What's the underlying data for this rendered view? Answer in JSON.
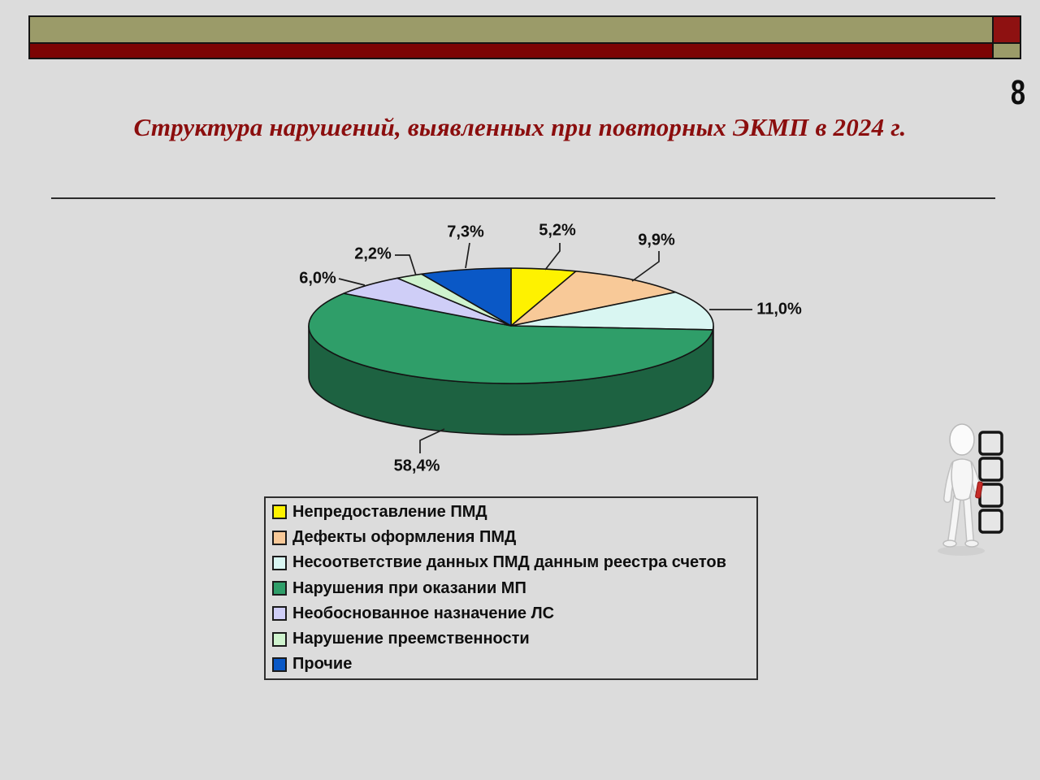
{
  "slide": {
    "page_number": "8",
    "title": "Структура нарушений, выявленных при повторных ЭКМП в 2024 г."
  },
  "theme": {
    "background": "#DCDCDC",
    "header_bar_olive": "#9B9B69",
    "header_bar_red": "#7C0404",
    "header_corner_red": "#8E1111",
    "title_color": "#8B0E0E",
    "outline_color": "#141414"
  },
  "chart_data": {
    "type": "pie",
    "style": "3d-pie",
    "title": "Структура нарушений, выявленных при повторных ЭКМП в 2024 г.",
    "unit": "%",
    "decimal_separator": ",",
    "start_angle_deg": 0,
    "direction": "clockwise",
    "legend_position": "bottom-left-box",
    "slices": [
      {
        "name": "Непредоставление ПМД",
        "value": 5.2,
        "label": "5,2%",
        "color": "#FEF200"
      },
      {
        "name": "Дефекты оформления ПМД",
        "value": 9.9,
        "label": "9,9%",
        "color": "#F8C998"
      },
      {
        "name": "Несоответствие данных ПМД данным реестра счетов",
        "value": 11.0,
        "label": "11,0%",
        "color": "#D9F6F2"
      },
      {
        "name": "Нарушения при оказании МП",
        "value": 58.4,
        "label": "58,4%",
        "color": "#2F9E69"
      },
      {
        "name": "Необоснованное назначение ЛС",
        "value": 6.0,
        "label": "6,0%",
        "color": "#CFCEF7"
      },
      {
        "name": "Нарушение преемственности",
        "value": 2.2,
        "label": "2,2%",
        "color": "#CFF3CE"
      },
      {
        "name": "Прочие",
        "value": 7.3,
        "label": "7,3%",
        "color": "#0A58C6"
      }
    ]
  }
}
